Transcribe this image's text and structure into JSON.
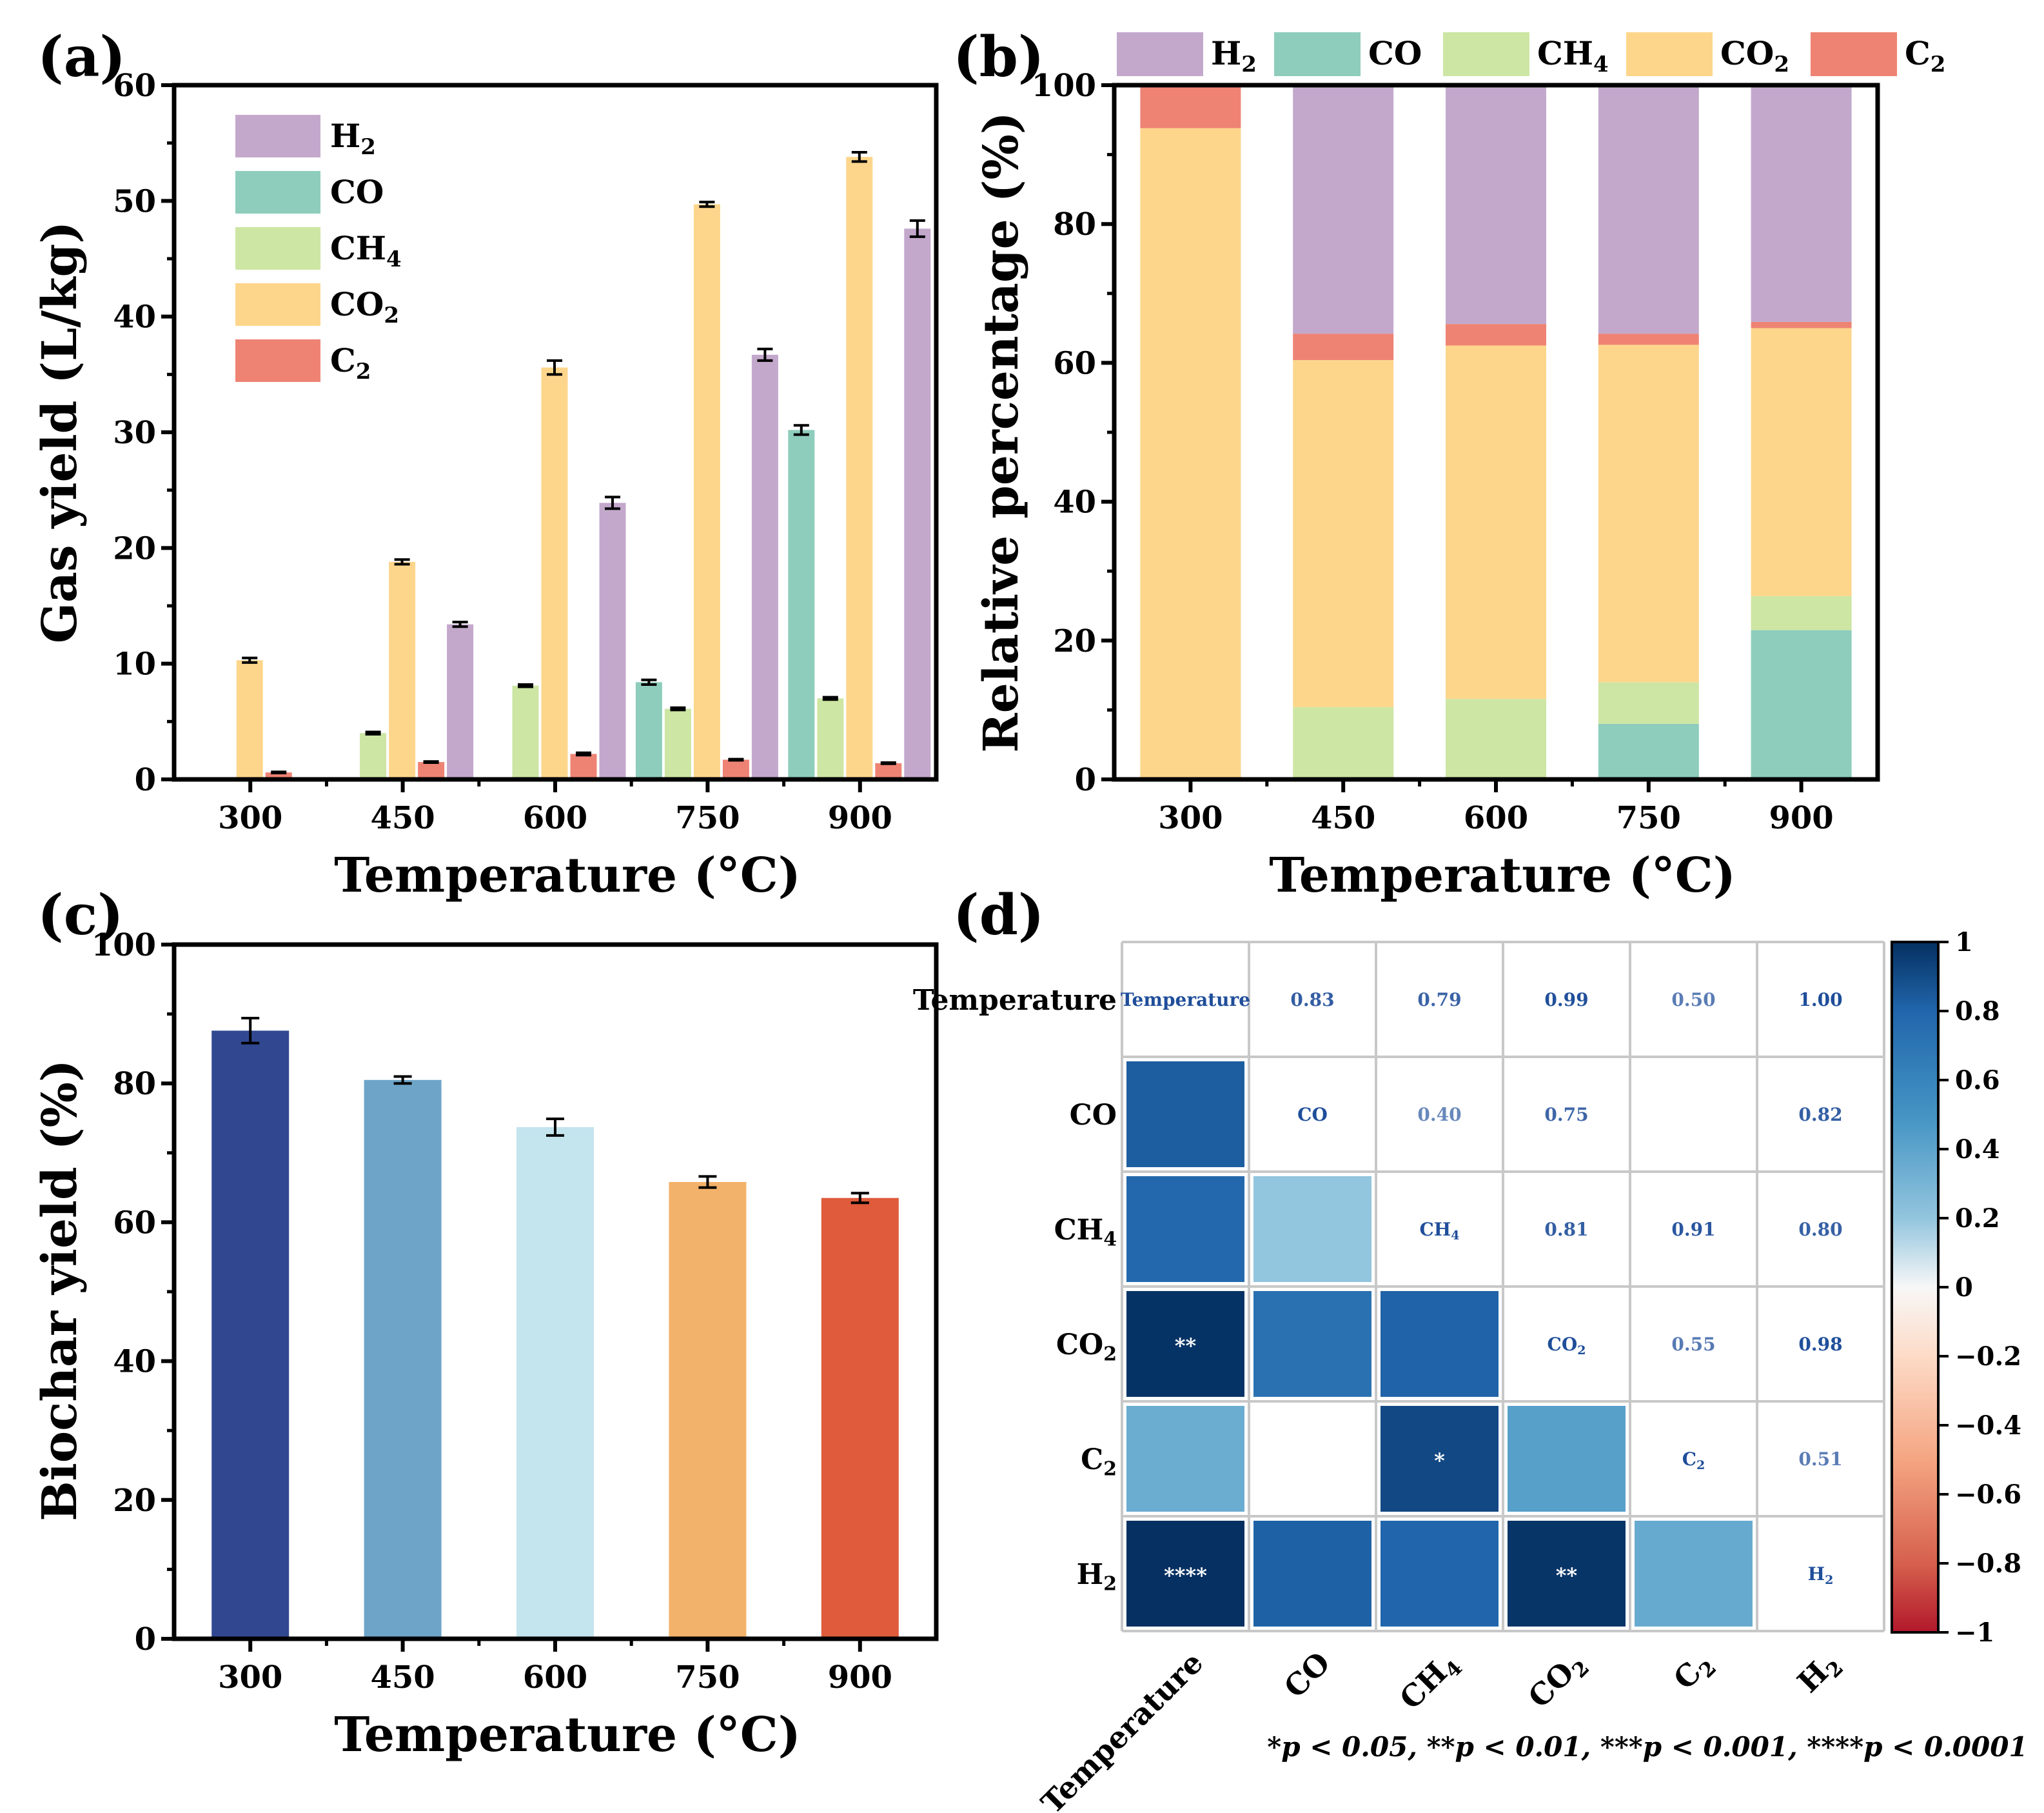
{
  "colors": {
    "H2": "#c3a8cc",
    "CO": "#8ecdbc",
    "CH4": "#cde6a4",
    "CO2": "#fdd68c",
    "C2": "#ee8374",
    "biochar": [
      "#314891",
      "#6ea4c8",
      "#c4e4ee",
      "#f3b26b",
      "#df5b3b"
    ]
  },
  "chart_data": [
    {
      "panel": "(a)",
      "type": "bar",
      "xlabel": "Temperature (°C)",
      "ylabel": "Gas yield (L/kg)",
      "ylim": [
        0,
        60
      ],
      "yticks": [
        "0",
        "10",
        "20",
        "30",
        "40",
        "50",
        "60"
      ],
      "categories": [
        "300",
        "450",
        "600",
        "750",
        "900"
      ],
      "series": [
        {
          "name": "H2",
          "label_main": "H",
          "label_sub": "2",
          "values": [
            0,
            13.4,
            23.9,
            36.7,
            47.6
          ],
          "errors": [
            0,
            0.2,
            0.5,
            0.5,
            0.7
          ]
        },
        {
          "name": "CO",
          "label_main": "CO",
          "label_sub": "",
          "values": [
            0,
            0,
            0,
            8.4,
            30.2
          ],
          "errors": [
            0,
            0,
            0,
            0.2,
            0.4
          ]
        },
        {
          "name": "CH4",
          "label_main": "CH",
          "label_sub": "4",
          "values": [
            0,
            4.0,
            8.1,
            6.1,
            7.0
          ],
          "errors": [
            0,
            0.1,
            0.1,
            0.1,
            0.1
          ]
        },
        {
          "name": "CO2",
          "label_main": "CO",
          "label_sub": "2",
          "values": [
            10.3,
            18.8,
            35.6,
            49.7,
            53.8
          ],
          "errors": [
            0.2,
            0.2,
            0.6,
            0.2,
            0.4
          ]
        },
        {
          "name": "C2",
          "label_main": "C",
          "label_sub": "2",
          "values": [
            0.6,
            1.5,
            2.2,
            1.7,
            1.4
          ],
          "errors": [
            0.05,
            0.05,
            0.1,
            0.05,
            0.05
          ]
        }
      ],
      "legend_location": "upper-left"
    },
    {
      "panel": "(b)",
      "type": "bar",
      "stacked": true,
      "xlabel": "Temperature (°C)",
      "ylabel": "Relative percentage (%)",
      "ylim": [
        0,
        100
      ],
      "yticks": [
        "0",
        "20",
        "40",
        "60",
        "80",
        "100"
      ],
      "categories": [
        "300",
        "450",
        "600",
        "750",
        "900"
      ],
      "stack_order": [
        "CO",
        "CH4",
        "CO2",
        "C2",
        "H2"
      ],
      "series": [
        {
          "name": "CO",
          "values": [
            0,
            0,
            0,
            8.0,
            21.5
          ]
        },
        {
          "name": "CH4",
          "values": [
            0,
            10.4,
            11.6,
            6.0,
            4.9
          ]
        },
        {
          "name": "CO2",
          "values": [
            93.8,
            50.0,
            50.9,
            48.6,
            38.6
          ]
        },
        {
          "name": "C2",
          "values": [
            6.2,
            3.8,
            3.1,
            1.6,
            0.9
          ]
        },
        {
          "name": "H2",
          "values": [
            0,
            35.8,
            34.4,
            35.8,
            34.1
          ]
        }
      ],
      "legend_location": "top",
      "legend": [
        {
          "name": "H2",
          "main": "H",
          "sub": "2"
        },
        {
          "name": "CO",
          "main": "CO",
          "sub": ""
        },
        {
          "name": "CH4",
          "main": "CH",
          "sub": "4"
        },
        {
          "name": "CO2",
          "main": "CO",
          "sub": "2"
        },
        {
          "name": "C2",
          "main": "C",
          "sub": "2"
        }
      ]
    },
    {
      "panel": "(c)",
      "type": "bar",
      "xlabel": "Temperature (°C)",
      "ylabel": "Biochar yield (%)",
      "ylim": [
        0,
        100
      ],
      "yticks": [
        "0",
        "20",
        "40",
        "60",
        "80",
        "100"
      ],
      "categories": [
        "300",
        "450",
        "600",
        "750",
        "900"
      ],
      "values": [
        87.6,
        80.5,
        73.7,
        65.8,
        63.5
      ],
      "errors": [
        1.8,
        0.5,
        1.2,
        0.8,
        0.7
      ]
    },
    {
      "panel": "(d)",
      "type": "heatmap",
      "variables": [
        {
          "name": "Temperature",
          "main": "Temperature",
          "sub": ""
        },
        {
          "name": "CO",
          "main": "CO",
          "sub": ""
        },
        {
          "name": "CH4",
          "main": "CH",
          "sub": "4"
        },
        {
          "name": "CO2",
          "main": "CO",
          "sub": "2"
        },
        {
          "name": "C2",
          "main": "C",
          "sub": "2"
        },
        {
          "name": "H2",
          "main": "H",
          "sub": "2"
        }
      ],
      "upper_values": [
        {
          "row": 0,
          "col": 1,
          "label": "0.83",
          "value": 0.83
        },
        {
          "row": 0,
          "col": 2,
          "label": "0.79",
          "value": 0.79
        },
        {
          "row": 0,
          "col": 3,
          "label": "0.99",
          "value": 0.99
        },
        {
          "row": 0,
          "col": 4,
          "label": "0.50",
          "value": 0.5
        },
        {
          "row": 0,
          "col": 5,
          "label": "1.00",
          "value": 1.0
        },
        {
          "row": 1,
          "col": 2,
          "label": "0.40",
          "value": 0.4
        },
        {
          "row": 1,
          "col": 3,
          "label": "0.75",
          "value": 0.75
        },
        {
          "row": 1,
          "col": 5,
          "label": "0.82",
          "value": 0.82
        },
        {
          "row": 2,
          "col": 3,
          "label": "0.81",
          "value": 0.81
        },
        {
          "row": 2,
          "col": 4,
          "label": "0.91",
          "value": 0.91
        },
        {
          "row": 2,
          "col": 5,
          "label": "0.80",
          "value": 0.8
        },
        {
          "row": 3,
          "col": 4,
          "label": "0.55",
          "value": 0.55
        },
        {
          "row": 3,
          "col": 5,
          "label": "0.98",
          "value": 0.98
        },
        {
          "row": 4,
          "col": 5,
          "label": "0.51",
          "value": 0.51
        }
      ],
      "lower_cells": [
        {
          "row": 1,
          "col": 0,
          "value": 0.83,
          "stars": ""
        },
        {
          "row": 2,
          "col": 0,
          "value": 0.79,
          "stars": ""
        },
        {
          "row": 2,
          "col": 1,
          "value": 0.4,
          "stars": ""
        },
        {
          "row": 3,
          "col": 0,
          "value": 0.99,
          "stars": "**"
        },
        {
          "row": 3,
          "col": 1,
          "value": 0.75,
          "stars": ""
        },
        {
          "row": 3,
          "col": 2,
          "value": 0.81,
          "stars": ""
        },
        {
          "row": 4,
          "col": 0,
          "value": 0.5,
          "stars": ""
        },
        {
          "row": 4,
          "col": 2,
          "value": 0.91,
          "stars": "*"
        },
        {
          "row": 4,
          "col": 3,
          "value": 0.55,
          "stars": ""
        },
        {
          "row": 5,
          "col": 0,
          "value": 1.0,
          "stars": "****"
        },
        {
          "row": 5,
          "col": 1,
          "value": 0.82,
          "stars": ""
        },
        {
          "row": 5,
          "col": 2,
          "value": 0.8,
          "stars": ""
        },
        {
          "row": 5,
          "col": 3,
          "value": 0.98,
          "stars": "**"
        },
        {
          "row": 5,
          "col": 4,
          "value": 0.51,
          "stars": ""
        }
      ],
      "colorbar_range": [
        -1,
        1
      ],
      "colorbar_ticks": [
        "1",
        "0.8",
        "0.6",
        "0.4",
        "0.2",
        "0",
        "−0.2",
        "−0.4",
        "−0.6",
        "−0.8",
        "−1"
      ],
      "significance_note": "*p < 0.05,  **p < 0.01,  ***p < 0.001,  ****p < 0.0001"
    }
  ]
}
